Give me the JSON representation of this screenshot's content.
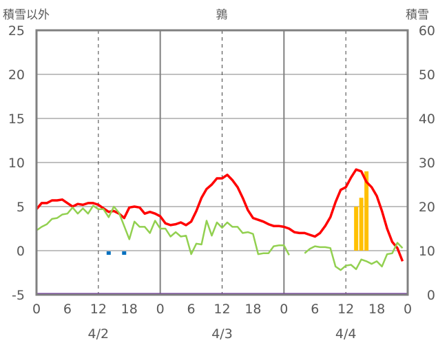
{
  "chart_data": {
    "type": "line",
    "title": "鶉",
    "ylabel_left": "積雪以外",
    "ylabel_right": "積雪",
    "ylim_left": [
      -5,
      25
    ],
    "ylim_right": [
      0,
      60
    ],
    "yticks_left": [
      "25",
      "20",
      "15",
      "10",
      "5",
      "0",
      "-5"
    ],
    "yticks_right": [
      "60",
      "50",
      "40",
      "30",
      "20",
      "10",
      "0"
    ],
    "xlim_hours": [
      0,
      72
    ],
    "xtick_labels": [
      "0",
      "6",
      "12",
      "18",
      "0",
      "6",
      "12",
      "18",
      "0",
      "6",
      "12",
      "18",
      "0"
    ],
    "date_labels": [
      {
        "label": "4/2",
        "hour": 12
      },
      {
        "label": "4/3",
        "hour": 36
      },
      {
        "label": "4/4",
        "hour": 60
      }
    ],
    "colors": {
      "temperature": "#ff0000",
      "dewpoint": "#92d050",
      "snow_depth": "#ffc000",
      "precipitation": "#0070c0",
      "baseline": "#7030a0"
    },
    "series": [
      {
        "key": "temperature",
        "axis": "left",
        "values": [
          4.7,
          5.4,
          5.4,
          5.7,
          5.7,
          5.8,
          5.4,
          5.0,
          5.3,
          5.2,
          5.4,
          5.4,
          5.2,
          4.8,
          4.4,
          4.5,
          4.2,
          3.7,
          4.9,
          5.0,
          4.9,
          4.2,
          4.4,
          4.2,
          3.9,
          3.1,
          2.9,
          3.0,
          3.2,
          2.9,
          3.3,
          4.5,
          6.0,
          7.0,
          7.5,
          8.2,
          8.2,
          8.6,
          8.0,
          7.2,
          6.0,
          4.6,
          3.7,
          3.5,
          3.3,
          3.0,
          2.8,
          2.8,
          2.7,
          2.5,
          2.1,
          2.0,
          2.0,
          1.8,
          1.6,
          2.0,
          2.8,
          3.8,
          5.5,
          6.9,
          7.2,
          8.3,
          9.2,
          9.0,
          7.8,
          7.2,
          6.2,
          4.5,
          2.5,
          1.0,
          0.3,
          -1.2
        ]
      },
      {
        "key": "dewpoint",
        "axis": "left",
        "values": [
          2.3,
          2.7,
          3.0,
          3.6,
          3.7,
          4.1,
          4.2,
          4.9,
          4.2,
          4.8,
          4.2,
          5.1,
          4.7,
          4.7,
          3.8,
          5.0,
          4.3,
          2.8,
          1.3,
          3.3,
          2.7,
          2.7,
          2.0,
          3.4,
          2.5,
          2.5,
          1.6,
          2.1,
          1.6,
          1.7,
          -0.4,
          0.8,
          0.7,
          3.4,
          1.7,
          3.2,
          2.6,
          3.2,
          2.7,
          2.7,
          2.0,
          2.1,
          1.9,
          -0.4,
          -0.3,
          -0.3,
          0.5,
          0.6,
          0.6,
          -0.5,
          null,
          null,
          -0.3,
          0.2,
          0.5,
          0.4,
          0.4,
          0.3,
          -1.8,
          -2.2,
          -1.7,
          -1.6,
          -2.1,
          -1.0,
          -1.2,
          -1.5,
          -1.2,
          -1.8,
          -0.4,
          -0.3,
          0.9,
          0.3
        ]
      },
      {
        "key": "snow_depth",
        "axis": "right",
        "type": "bar",
        "bars": [
          {
            "hour": 62,
            "value": 20
          },
          {
            "hour": 63,
            "value": 22
          },
          {
            "hour": 64,
            "value": 28
          }
        ]
      },
      {
        "key": "precipitation",
        "axis": "left",
        "type": "bar",
        "bars": [
          {
            "hour": 14,
            "value": -0.3
          },
          {
            "hour": 17,
            "value": -0.3
          }
        ]
      }
    ]
  }
}
